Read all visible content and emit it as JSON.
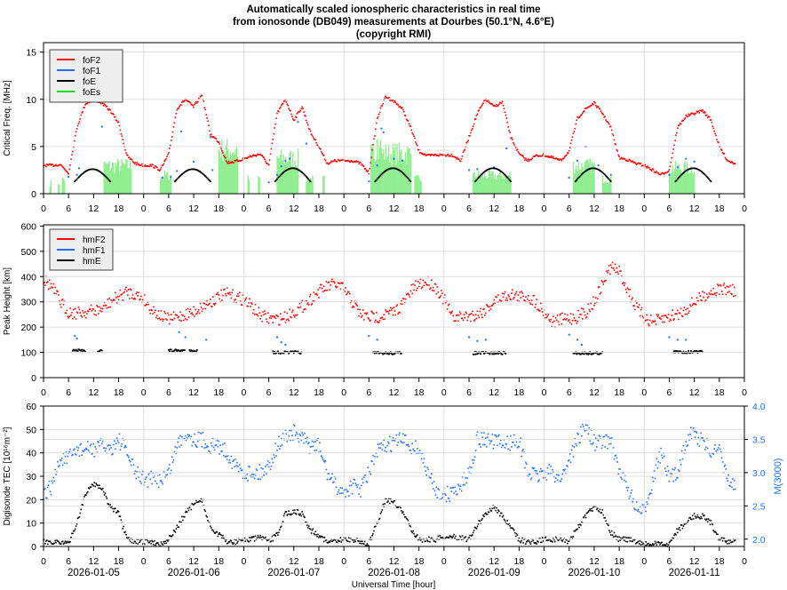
{
  "title": [
    "Automatically scaled ionospheric characteristics in real time",
    "from ionosonde (DB049) measurements at Dourbes (50.1°N, 4.6°E)",
    "(copyright RMI)"
  ],
  "colors": {
    "foF2": "#ff0000",
    "foF1": "#1f6fff",
    "foE": "#000000",
    "foEs": "#90ee90",
    "foEs_legend": "#00dd00",
    "grid": "#dddddd",
    "m3000": "#1f6fff"
  },
  "chart_data": [
    {
      "type": "scatter",
      "ylabel": "Critical Freq. [MHz]",
      "ylim": [
        0,
        16
      ],
      "yticks": [
        0,
        5,
        10,
        15
      ],
      "x_unit": "hours since 2026-01-05 00:00 UT",
      "sample_step_hours": 2,
      "legend": [
        "foF2",
        "foF1",
        "foE",
        "foEs"
      ],
      "legend_position": "top-left",
      "series": {
        "foF2": [
          3.0,
          3.0,
          3.1,
          2.2,
          7,
          9.5,
          10,
          9.6,
          8.8,
          7.5,
          4,
          3.2,
          3.0,
          3.0,
          2.5,
          4.2,
          9,
          10,
          9.2,
          10.5,
          6.3,
          5.5,
          3.3,
          3.4,
          3.7,
          4.0,
          4.2,
          3.0,
          8.5,
          10,
          7.8,
          9.2,
          6.5,
          5,
          3.2,
          3.5,
          3.5,
          3.5,
          3.2,
          2.2,
          8,
          10.3,
          9.8,
          9,
          7,
          4.5,
          4,
          4.1,
          4.1,
          4.1,
          3.5,
          6,
          8.5,
          10,
          9.2,
          9.7,
          6,
          4.2,
          3.5,
          4,
          4.1,
          3.8,
          3.5,
          4.5,
          8,
          9,
          9.6,
          8.5,
          7,
          3.8,
          3.6,
          3.2,
          3.0,
          2.5,
          2.0,
          2.5,
          7,
          8.2,
          8.5,
          8.8,
          7.8,
          5,
          3.5,
          3.2
        ],
        "foF1": [
          [
            6,
            1.8
          ],
          [
            8,
            2.0
          ],
          [
            8.5,
            2.7
          ],
          [
            14,
            7.1
          ],
          [
            28.5,
            1.7
          ],
          [
            30.5,
            1.8
          ],
          [
            32,
            2.4
          ],
          [
            33,
            6.6
          ],
          [
            36,
            3.4
          ],
          [
            40,
            6.0
          ],
          [
            40.5,
            2.5
          ],
          [
            54,
            1.2
          ],
          [
            56,
            2.0
          ],
          [
            57,
            2.9
          ],
          [
            58,
            3.5
          ],
          [
            59,
            3.7
          ],
          [
            61,
            7.6
          ],
          [
            63,
            5.3
          ],
          [
            78,
            1.3
          ],
          [
            80,
            3.0
          ],
          [
            81,
            6.9
          ],
          [
            81.5,
            6.5
          ],
          [
            84,
            3.7
          ],
          [
            86,
            3.5
          ],
          [
            102,
            2.5
          ],
          [
            104,
            2.6
          ],
          [
            108,
            2.8
          ],
          [
            111,
            4.8
          ],
          [
            126,
            1.7
          ],
          [
            128,
            3.5
          ],
          [
            130,
            5.0
          ],
          [
            133,
            3.0
          ],
          [
            136,
            2.0
          ],
          [
            150,
            2.0
          ],
          [
            152,
            2.8
          ],
          [
            154,
            3.7
          ],
          [
            156,
            3.4
          ]
        ],
        "foE_hours": [
          7.5,
          16
        ],
        "foE_peak": [
          2.6,
          2.6,
          2.7,
          2.7,
          2.7,
          2.7,
          2.7
        ],
        "foEs": [
          [
            1.5,
            1.9,
            1.5
          ],
          [
            3.5,
            3.9,
            1.5
          ],
          [
            4.5,
            5.2,
            2.0
          ],
          [
            14.5,
            21,
            3.8
          ],
          [
            28,
            30.5,
            2.5
          ],
          [
            42,
            46.5,
            6.0
          ],
          [
            49,
            49.3,
            2.0
          ],
          [
            51.5,
            51.8,
            2.0
          ],
          [
            56,
            61,
            4.8
          ],
          [
            63,
            64.5,
            2.0
          ],
          [
            67,
            67.3,
            2.0
          ],
          [
            78.5,
            88,
            5.5
          ],
          [
            79.5,
            81,
            6.0
          ],
          [
            89,
            90.5,
            2.0
          ],
          [
            103,
            112,
            2.5
          ],
          [
            127,
            132,
            3.8
          ],
          [
            134,
            136,
            2.0
          ],
          [
            150,
            156,
            3.5
          ]
        ]
      }
    },
    {
      "type": "scatter",
      "ylabel": "Peak Height [km]",
      "ylim": [
        0,
        605
      ],
      "yticks": [
        0,
        100,
        200,
        300,
        400,
        500,
        600
      ],
      "legend": [
        "hmF2",
        "hmF1",
        "hmE"
      ],
      "legend_position": "top-left",
      "series": {
        "hmF2": [
          390,
          360,
          300,
          260,
          255,
          260,
          265,
          270,
          300,
          320,
          340,
          330,
          310,
          270,
          245,
          230,
          240,
          250,
          260,
          280,
          300,
          320,
          330,
          320,
          310,
          280,
          245,
          235,
          230,
          240,
          260,
          280,
          310,
          340,
          360,
          370,
          350,
          300,
          250,
          240,
          240,
          250,
          260,
          290,
          340,
          370,
          380,
          360,
          310,
          240,
          240,
          245,
          250,
          270,
          300,
          320,
          330,
          320,
          320,
          300,
          260,
          220,
          230,
          235,
          240,
          260,
          300,
          370,
          440,
          420,
          350,
          280,
          240,
          220,
          230,
          240,
          250,
          270,
          300,
          320,
          340,
          350,
          350,
          340
        ],
        "hmF1": [
          [
            7.5,
            165
          ],
          [
            8,
            155
          ],
          [
            32.5,
            180
          ],
          [
            34,
            160
          ],
          [
            39,
            150
          ],
          [
            56,
            160
          ],
          [
            57,
            140
          ],
          [
            58,
            130
          ],
          [
            78,
            165
          ],
          [
            80,
            150
          ],
          [
            102,
            160
          ],
          [
            104,
            145
          ],
          [
            106,
            150
          ],
          [
            126,
            170
          ],
          [
            128,
            150
          ],
          [
            129,
            130
          ],
          [
            150,
            160
          ],
          [
            152,
            150
          ],
          [
            154,
            150
          ]
        ],
        "hmE": [
          [
            7,
            10,
            110
          ],
          [
            13,
            14,
            110
          ],
          [
            30,
            34,
            110
          ],
          [
            35,
            37,
            110
          ],
          [
            55,
            62,
            103
          ],
          [
            79,
            86,
            100
          ],
          [
            103,
            111,
            100
          ],
          [
            127,
            134,
            100
          ],
          [
            151,
            158,
            105
          ]
        ]
      }
    },
    {
      "type": "scatter",
      "ylabel": "Digisonde TEC [10¹⁶m⁻²]",
      "y2label": "M(3000)",
      "ylim": [
        0,
        60
      ],
      "yticks": [
        0,
        10,
        20,
        30,
        40,
        50,
        60
      ],
      "y2lim": [
        1.89,
        4.0
      ],
      "y2ticks": [
        "2.0",
        "2.5",
        "3.0",
        "3.5",
        "4.0"
      ],
      "xlabel": "Universal Time [hour]",
      "xticks": [
        "0",
        "6",
        "12",
        "18"
      ],
      "dates": [
        "2026-01-05",
        "2026-01-06",
        "2026-01-07",
        "2026-01-08",
        "2026-01-09",
        "2026-01-10",
        "2026-01-11"
      ],
      "series": {
        "TEC": [
          2,
          2,
          2,
          1,
          10,
          22,
          27,
          25,
          17,
          14,
          3,
          2,
          2,
          2,
          1,
          3,
          8,
          14,
          18,
          20,
          8,
          5,
          2,
          2,
          3,
          3,
          4,
          2,
          5,
          14,
          15,
          14,
          7,
          5,
          2,
          2,
          3,
          3,
          2,
          1,
          10,
          20,
          19,
          15,
          8,
          3,
          3,
          3,
          4,
          4,
          4,
          3,
          9,
          14,
          17,
          13,
          8,
          3,
          2,
          2,
          3,
          3,
          3,
          2,
          8,
          13,
          17,
          15,
          6,
          3,
          3,
          2,
          1,
          1,
          1,
          1,
          7,
          10,
          13,
          13,
          10,
          3,
          2,
          2
        ],
        "M3000": [
          2.65,
          2.8,
          3.2,
          3.2,
          3.35,
          3.35,
          3.35,
          3.4,
          3.35,
          3.5,
          3.3,
          3.0,
          2.9,
          2.9,
          2.9,
          3.0,
          3.4,
          3.6,
          3.5,
          3.5,
          3.4,
          3.4,
          3.3,
          3.1,
          3.0,
          3.0,
          3.0,
          3.1,
          3.4,
          3.55,
          3.6,
          3.5,
          3.4,
          3.4,
          3.0,
          2.8,
          2.7,
          2.8,
          2.75,
          3.0,
          3.3,
          3.4,
          3.45,
          3.5,
          3.4,
          3.35,
          3.0,
          2.75,
          2.65,
          2.7,
          2.8,
          3.0,
          3.5,
          3.5,
          3.45,
          3.45,
          3.45,
          3.5,
          3.0,
          2.95,
          3.0,
          3.0,
          2.9,
          3.2,
          3.5,
          3.7,
          3.45,
          3.45,
          3.5,
          3.0,
          2.8,
          2.45,
          2.4,
          2.9,
          3.3,
          2.9,
          3.0,
          3.5,
          3.6,
          3.45,
          3.35,
          3.3,
          2.9,
          2.75
        ]
      }
    }
  ]
}
